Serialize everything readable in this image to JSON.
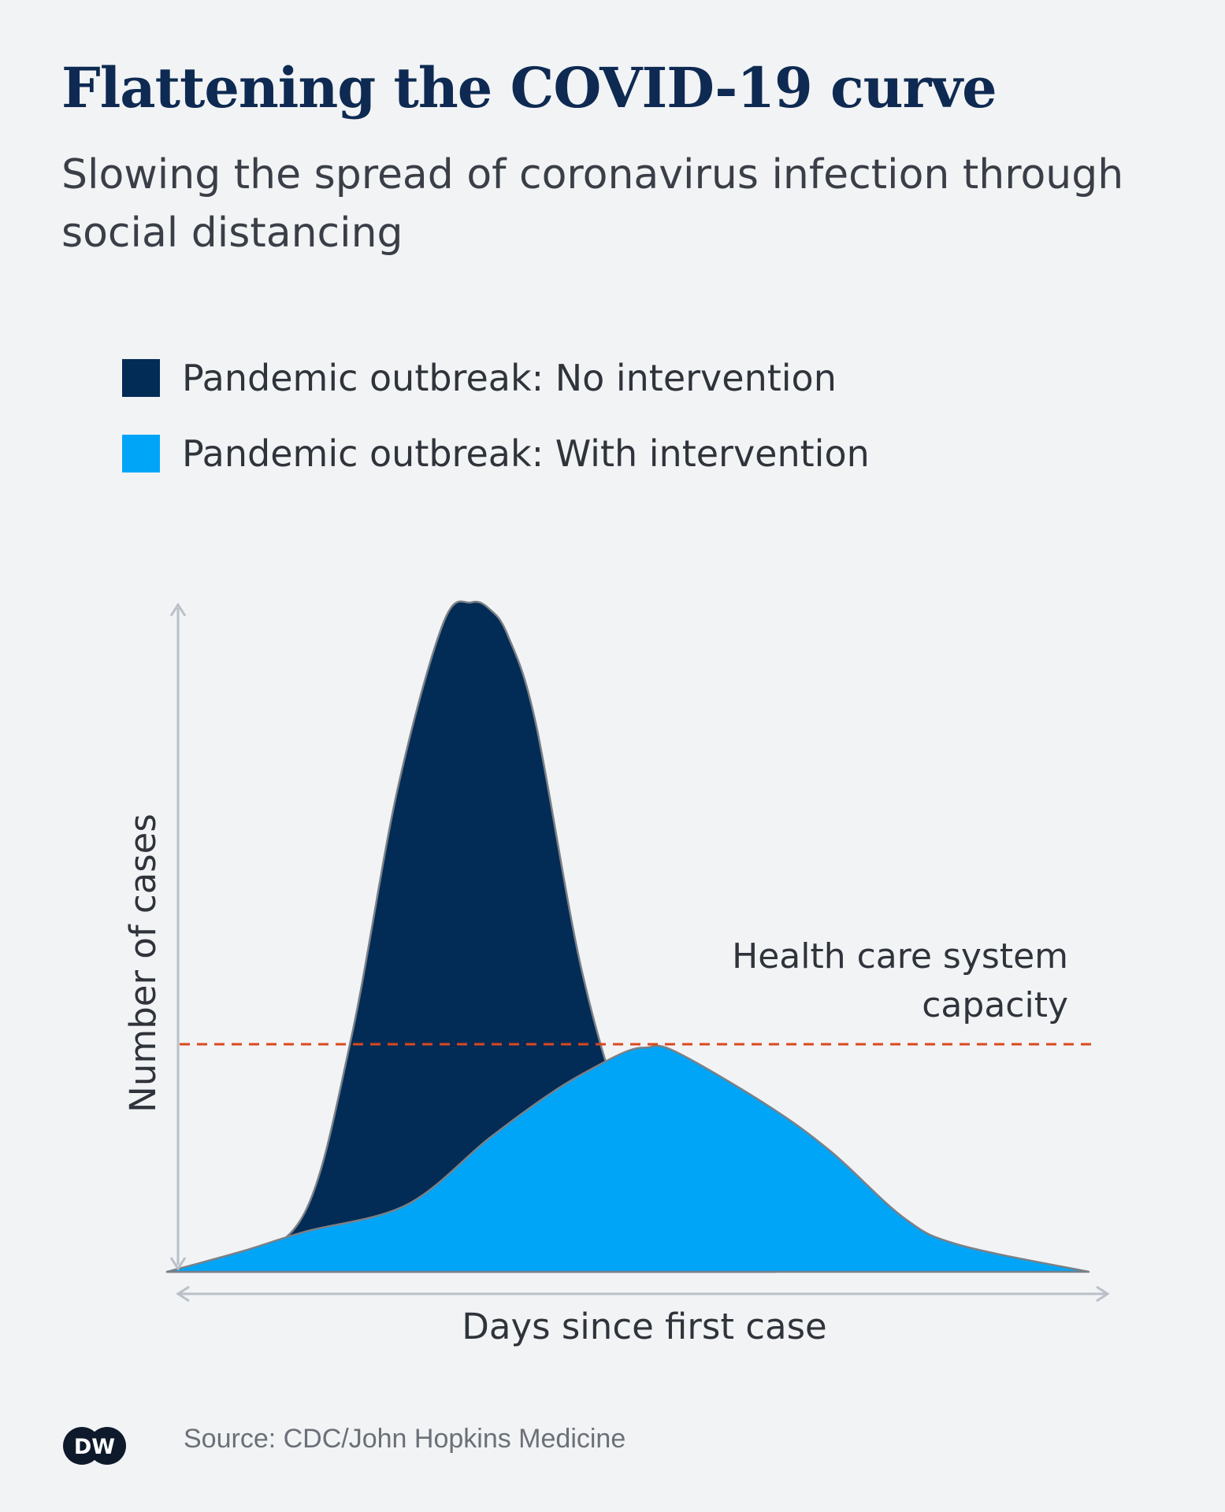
{
  "header": {
    "title": "Flattening the COVID-19 curve",
    "subtitle": "Slowing the spread of coronavirus infection through social distancing"
  },
  "legend": [
    {
      "label": "Pandemic outbreak: No intervention",
      "color": "#022b55"
    },
    {
      "label": "Pandemic outbreak: With intervention",
      "color": "#00a5f7"
    }
  ],
  "footer": {
    "logo_text": "DW",
    "source": "Source: CDC/John Hopkins Medicine"
  },
  "colors": {
    "title": "#0e2a52",
    "capacity_line": "#d9491e",
    "axis": "#b9c0c8",
    "outline": "#7a8087"
  },
  "chart_data": {
    "type": "area",
    "title": "Flattening the COVID-19 curve",
    "xlabel": "Days since first case",
    "ylabel": "Number of cases",
    "xlim": [
      0,
      100
    ],
    "ylim": [
      0,
      100
    ],
    "grid": false,
    "legend_position": "top-left",
    "threshold": {
      "label_line1": "Health care system",
      "label_line2": "capacity",
      "value": 34
    },
    "series": [
      {
        "name": "Pandemic outbreak: No intervention",
        "color": "#022b55",
        "x": [
          0,
          8,
          15,
          20,
          25,
          30,
          33,
          35,
          37,
          40,
          45,
          50,
          55,
          60,
          66
        ],
        "y": [
          0,
          2,
          9,
          35,
          72,
          97,
          100,
          99,
          95,
          82,
          45,
          22,
          12,
          5,
          0
        ]
      },
      {
        "name": "Pandemic outbreak: With intervention",
        "color": "#00a5f7",
        "x": [
          0,
          8,
          15,
          26,
          35,
          42,
          47,
          50,
          52,
          55,
          65,
          72,
          80,
          86,
          100
        ],
        "y": [
          0,
          3,
          6,
          10,
          20,
          27,
          31,
          33,
          33.5,
          33,
          25,
          18,
          8,
          4,
          0
        ]
      }
    ]
  }
}
